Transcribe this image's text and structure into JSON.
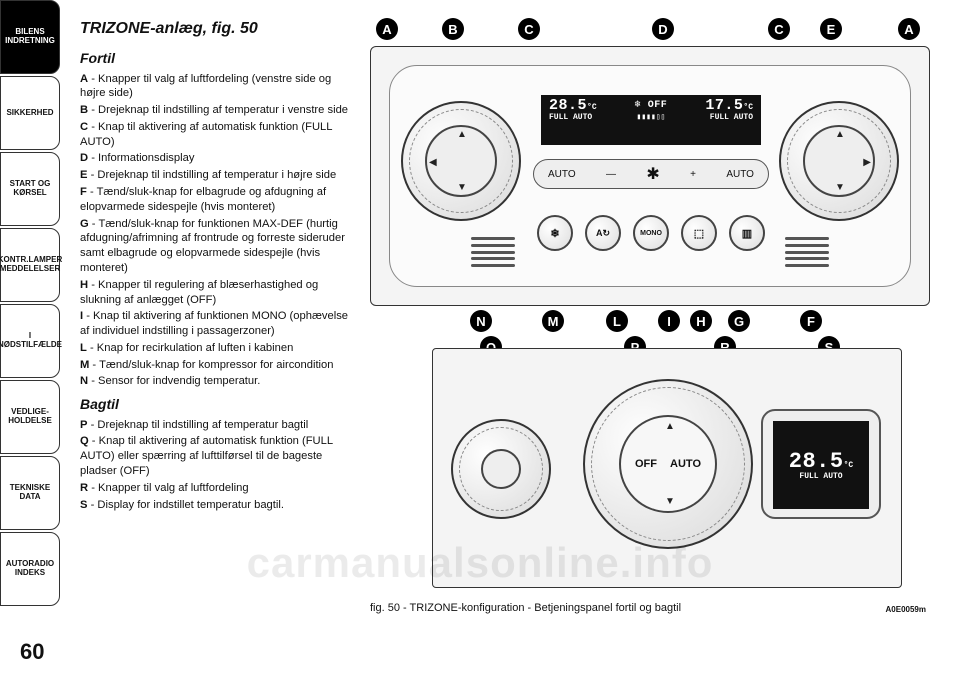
{
  "page_number": "60",
  "watermark": "carmanualsonline.info",
  "tabs": [
    {
      "label": "BILENS\nINDRETNING",
      "active": true
    },
    {
      "label": "SIKKERHED",
      "active": false
    },
    {
      "label": "START OG\nKØRSEL",
      "active": false
    },
    {
      "label": "KONTR.LAMPER\nMEDDELELSER",
      "active": false
    },
    {
      "label": "I NØDSTILFÆLDE",
      "active": false
    },
    {
      "label": "VEDLIGE-\nHOLDELSE",
      "active": false
    },
    {
      "label": "TEKNISKE DATA",
      "active": false
    },
    {
      "label": "AUTORADIO\nINDEKS",
      "active": false
    }
  ],
  "heading": "TRIZONE-anlæg, fig. 50",
  "section_front": "Fortil",
  "items_front": [
    {
      "k": "A",
      "t": " - Knapper til valg af luftfordeling (venstre side og højre side)"
    },
    {
      "k": "B",
      "t": " - Drejeknap til indstilling af temperatur i venstre side"
    },
    {
      "k": "C",
      "t": " - Knap til aktivering af automatisk funktion (FULL AUTO)"
    },
    {
      "k": "D",
      "t": " - Informationsdisplay"
    },
    {
      "k": "E",
      "t": " - Drejeknap til indstilling af temperatur i højre side"
    },
    {
      "k": "F",
      "t": " - Tænd/sluk-knap for elbagrude og afdugning af elopvarmede sidespejle (hvis monteret)"
    },
    {
      "k": "G",
      "t": " - Tænd/sluk-knap for funktionen MAX-DEF (hurtig afdugning/afrimning af frontrude og forreste sideruder samt elbagrude og elopvarmede sidespejle (hvis monteret)"
    },
    {
      "k": "H",
      "t": " - Knapper til regulering af blæserhastighed og slukning af anlægget (OFF)"
    },
    {
      "k": "I",
      "t": " - Knap til aktivering af funktionen MONO (ophævelse af individuel indstilling i passagerzoner)"
    },
    {
      "k": "L",
      "t": " - Knap for recirkulation af luften i kabinen"
    },
    {
      "k": "M",
      "t": " - Tænd/sluk-knap for kompressor for aircondition"
    },
    {
      "k": "N",
      "t": " - Sensor for indvendig temperatur."
    }
  ],
  "section_rear": "Bagtil",
  "items_rear": [
    {
      "k": "P",
      "t": " - Drejeknap til indstilling af temperatur bagtil"
    },
    {
      "k": "Q",
      "t": " - Knap til aktivering af automatisk funktion (FULL AUTO) eller spærring af lufttilførsel til de bageste pladser (OFF)"
    },
    {
      "k": "R",
      "t": " - Knapper til valg af luftfordeling"
    },
    {
      "k": "S",
      "t": " - Display for indstillet temperatur bagtil."
    }
  ],
  "figure": {
    "caption": "fig. 50 - TRIZONE-konfiguration - Betjeningspanel fortil og bagtil",
    "code": "A0E0059m",
    "callouts_top": [
      "A",
      "B",
      "C",
      "D",
      "C",
      "E",
      "A"
    ],
    "callouts_bottom": [
      "N",
      "M",
      "L",
      "I",
      "H",
      "G",
      "F"
    ],
    "callouts_rear": [
      "Q",
      "P",
      "R",
      "S"
    ],
    "front_display": {
      "left_temp": "28.5",
      "left_unit": "°C",
      "left_mode": "FULL AUTO",
      "center_icon": "❄",
      "center_text": "OFF",
      "bars": "▮▮▮▮▯▯",
      "right_temp": "17.5",
      "right_unit": "°C",
      "right_mode": "FULL AUTO"
    },
    "autobar": {
      "left": "AUTO",
      "minus": "—",
      "fan": "✱",
      "plus": "+",
      "right": "AUTO"
    },
    "buttons": {
      "m": "❄",
      "l": "A↻",
      "i": "MONO",
      "g": "⬚",
      "f": "▥"
    },
    "rear_dial": {
      "left": "OFF",
      "right": "AUTO"
    },
    "rear_display": {
      "temp": "28.5",
      "unit": "°C",
      "mode": "FULL AUTO"
    }
  },
  "colors": {
    "page_bg": "#ffffff",
    "panel_bg": "#f4f4f4",
    "display_bg": "#111111",
    "display_fg": "#ffffff",
    "ink": "#111111",
    "watermark": "rgba(0,0,0,0.08)"
  }
}
